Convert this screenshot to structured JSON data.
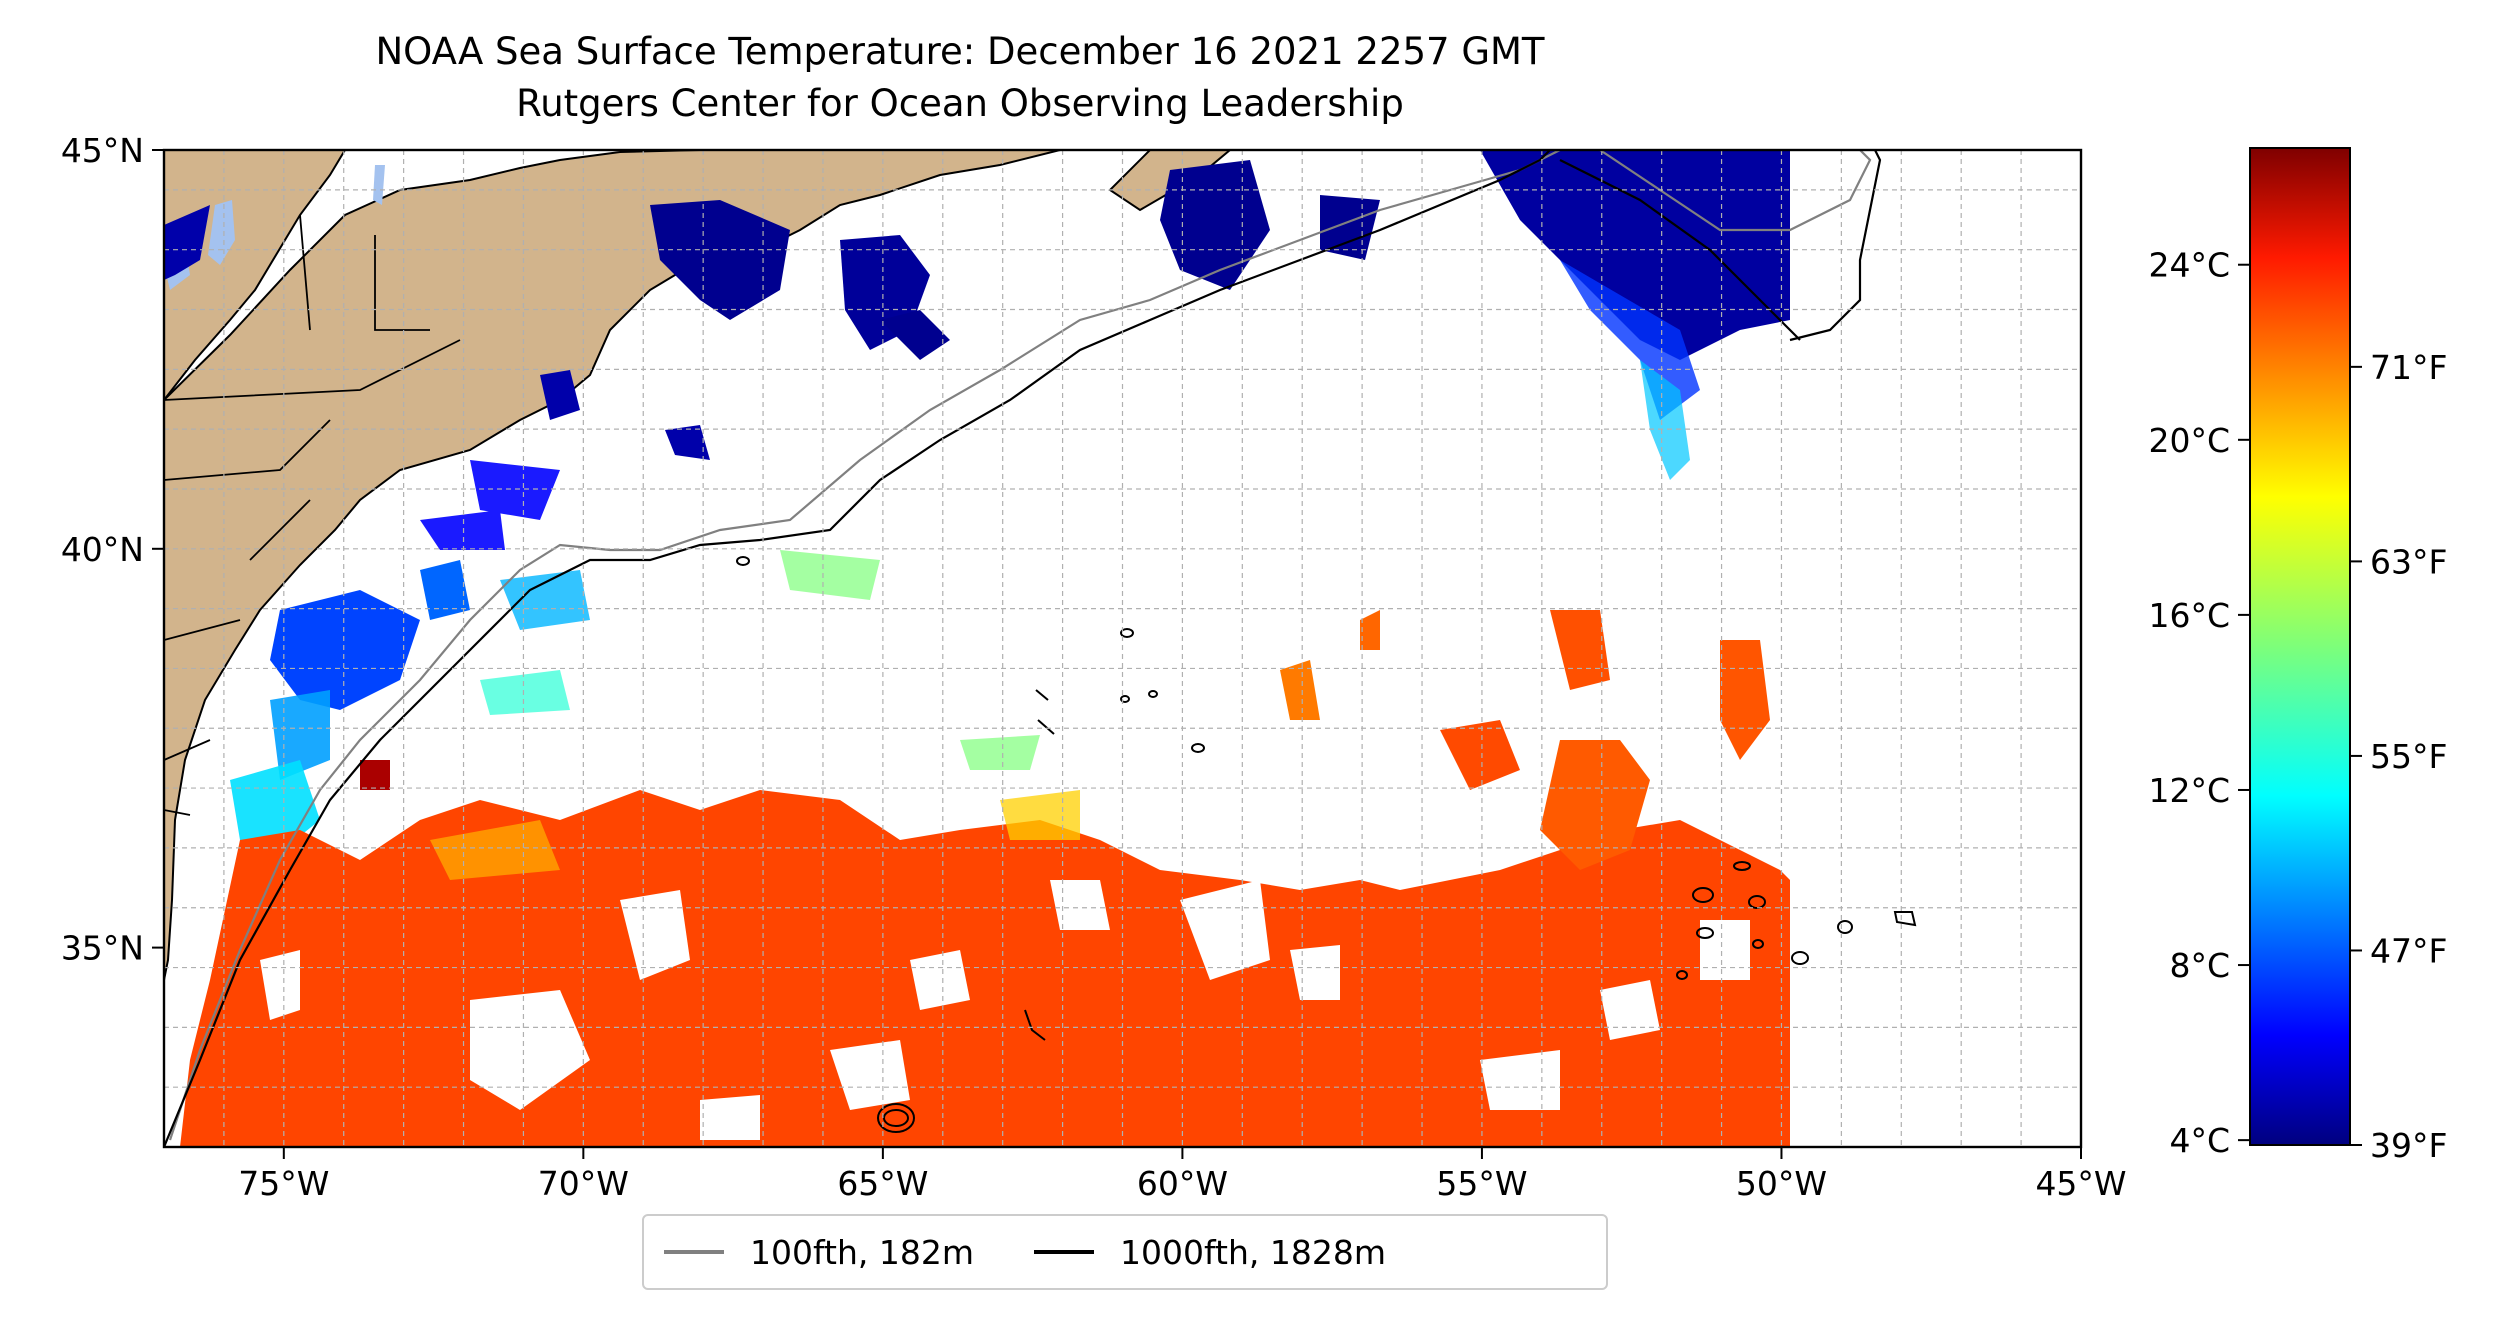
{
  "title": {
    "line1": "NOAA Sea Surface Temperature: December 16 2021 2257 GMT",
    "line2": "Rutgers Center for Ocean Observing Leadership"
  },
  "map": {
    "lon_range": [
      -77,
      -45
    ],
    "lat_range": [
      32.5,
      45
    ],
    "lon_ticks": [
      {
        "value": -75,
        "label": "75°W"
      },
      {
        "value": -70,
        "label": "70°W"
      },
      {
        "value": -65,
        "label": "65°W"
      },
      {
        "value": -60,
        "label": "60°W"
      },
      {
        "value": -55,
        "label": "55°W"
      },
      {
        "value": -50,
        "label": "50°W"
      },
      {
        "value": -45,
        "label": "45°W"
      }
    ],
    "lat_ticks": [
      {
        "value": 45,
        "label": "45°N"
      },
      {
        "value": 40,
        "label": "40°N"
      },
      {
        "value": 35,
        "label": "35°N"
      }
    ],
    "gridlines": true,
    "land_color": "#d2b48c",
    "lake_color": "#a4c2ef",
    "colormap": "jet"
  },
  "legend": {
    "items": [
      {
        "label": "100fth, 182m",
        "color": "#808080"
      },
      {
        "label": "1000fth, 1828m",
        "color": "#000000"
      }
    ]
  },
  "colorbar": {
    "celsius_ticks": [
      {
        "value": 24,
        "label": "24°C"
      },
      {
        "value": 20,
        "label": "20°C"
      },
      {
        "value": 16,
        "label": "16°C"
      },
      {
        "value": 12,
        "label": "12°C"
      },
      {
        "value": 8,
        "label": "8°C"
      },
      {
        "value": 4,
        "label": "4°C"
      }
    ],
    "fahrenheit_ticks": [
      {
        "value": 71,
        "label": "71°F"
      },
      {
        "value": 63,
        "label": "63°F"
      },
      {
        "value": 55,
        "label": "55°F"
      },
      {
        "value": 47,
        "label": "47°F"
      },
      {
        "value": 39,
        "label": "39°F"
      }
    ],
    "range_f": [
      39,
      80
    ]
  }
}
